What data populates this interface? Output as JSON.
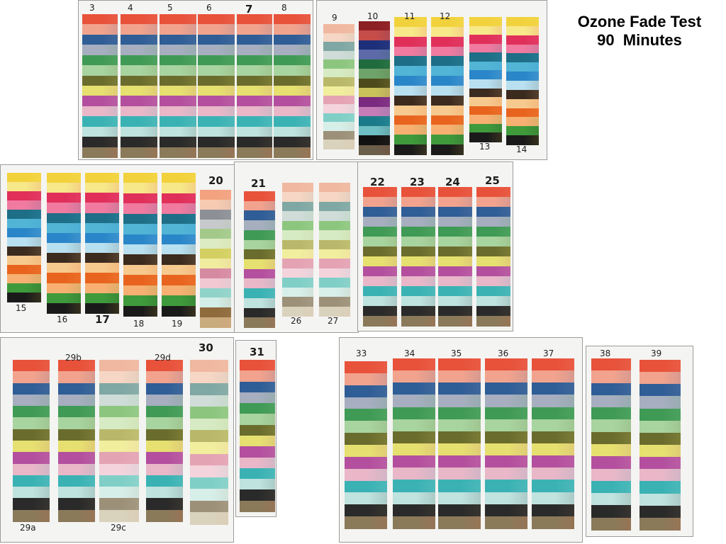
{
  "title": {
    "line1": "Ozone Fade Test",
    "line2": "90  Minutes"
  },
  "strips": [
    {
      "label": "3",
      "palette": "std"
    },
    {
      "label": "4",
      "palette": "std"
    },
    {
      "label": "5",
      "palette": "std"
    },
    {
      "label": "6",
      "palette": "std"
    },
    {
      "label": "7",
      "palette": "std"
    },
    {
      "label": "8",
      "palette": "std"
    },
    {
      "label": "9",
      "palette": "pale"
    },
    {
      "label": "10",
      "palette": "dark"
    },
    {
      "label": "11",
      "palette": "marker"
    },
    {
      "label": "12",
      "palette": "marker"
    },
    {
      "label": "13",
      "palette": "marker"
    },
    {
      "label": "14",
      "palette": "marker"
    },
    {
      "label": "15",
      "palette": "marker"
    },
    {
      "label": "16",
      "palette": "marker"
    },
    {
      "label": "17",
      "palette": "marker"
    },
    {
      "label": "18",
      "palette": "marker"
    },
    {
      "label": "19",
      "palette": "marker"
    },
    {
      "label": "20",
      "palette": "muted"
    },
    {
      "label": "21",
      "palette": "std"
    },
    {
      "label": "26",
      "palette": "pale"
    },
    {
      "label": "27",
      "palette": "pale"
    },
    {
      "label": "22",
      "palette": "std"
    },
    {
      "label": "23",
      "palette": "std"
    },
    {
      "label": "24",
      "palette": "std"
    },
    {
      "label": "25",
      "palette": "std"
    },
    {
      "label": "29a",
      "palette": "std"
    },
    {
      "label": "29b",
      "palette": "std"
    },
    {
      "label": "29c",
      "palette": "pale"
    },
    {
      "label": "29d",
      "palette": "std"
    },
    {
      "label": "30",
      "palette": "pale"
    },
    {
      "label": "31",
      "palette": "std"
    },
    {
      "label": "33",
      "palette": "std"
    },
    {
      "label": "34",
      "palette": "std"
    },
    {
      "label": "35",
      "palette": "std"
    },
    {
      "label": "36",
      "palette": "std"
    },
    {
      "label": "37",
      "palette": "std"
    },
    {
      "label": "38",
      "palette": "std"
    },
    {
      "label": "39",
      "palette": "std"
    }
  ],
  "palettes": {
    "std": [
      "#e8513a",
      "#f2a38e",
      "#2f5d96",
      "#a6aebf",
      "#3f9a55",
      "#a8d4a0",
      "#6a6c2d",
      "#e6e070",
      "#b34f9e",
      "#e9b7c8",
      "#3ab2b4",
      "#bfe3df",
      "#2a2a2a",
      "#8a7a5a"
    ],
    "pale": [
      "#f0b8a0",
      "#f6d6c4",
      "#7fa7a3",
      "#cfdcd8",
      "#8cc67e",
      "#d6ebc4",
      "#b9b86a",
      "#f1ef9e",
      "#e4a3b3",
      "#f4d3dc",
      "#7fcfc7",
      "#d7efe9",
      "#9c9078",
      "#d9d2bc"
    ],
    "dark": [
      "#8b1f24",
      "#c64d4a",
      "#1e2f7a",
      "#5d6aa8",
      "#1f6b3d",
      "#6ea36a",
      "#4d4b1c",
      "#c9c25a",
      "#7a2a7f",
      "#c57cb7",
      "#1a7a8a",
      "#6fc0c4",
      "#111111",
      "#6b5e4a"
    ],
    "marker": [
      "#f2d23c",
      "#f7e98a",
      "#e0305a",
      "#f07aa0",
      "#1d6e86",
      "#52b5d6",
      "#2a86c8",
      "#b8e0f0",
      "#3b2a1e",
      "#f6c98e",
      "#e8641e",
      "#f7b071",
      "#3f9a3b",
      "#1a1a1a"
    ],
    "muted": [
      "#f3a27f",
      "#f7cbb2",
      "#8d8f97",
      "#c7c9cc",
      "#a3c98a",
      "#dcebc4",
      "#d4cf62",
      "#f1ed9f",
      "#d68aa2",
      "#f2c8d3",
      "#8fd2c8",
      "#d3eee8",
      "#8e6a3d",
      "#c9ab7e"
    ]
  }
}
